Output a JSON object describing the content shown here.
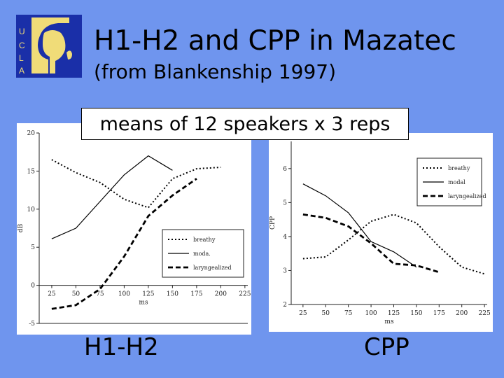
{
  "slide": {
    "title": "H1-H2 and CPP in Mazatec",
    "subtitle": "(from Blankenship 1997)",
    "note": "means of 12 speakers x 3 reps",
    "logo_letters": [
      "U",
      "C",
      "L",
      "A"
    ],
    "captions": {
      "left": "H1-H2",
      "right": "CPP"
    },
    "colors": {
      "background": "#6f95ee",
      "logo_blue": "#1a2fa8",
      "logo_gold": "#f0dc78"
    }
  },
  "chart_data": [
    {
      "type": "line",
      "xlabel": "ms",
      "ylabel": "dB",
      "x_ticks": [
        "25",
        "50",
        "75",
        "100",
        "125",
        "150",
        "175",
        "200",
        "225"
      ],
      "y_ticks": [
        "-5",
        "0",
        "5",
        "10",
        "15",
        "20"
      ],
      "xlim": [
        12,
        228
      ],
      "ylim": [
        -5,
        20
      ],
      "legend_position": "bottom-right",
      "series": [
        {
          "name": "breathy",
          "dash": "dotted",
          "x": [
            25,
            50,
            75,
            100,
            125,
            150,
            175,
            200
          ],
          "y": [
            16.5,
            14.8,
            13.5,
            11.3,
            10.2,
            14,
            15.3,
            15.5
          ]
        },
        {
          "name": "moda.",
          "dash": "solid",
          "x": [
            25,
            50,
            75,
            100,
            125,
            150
          ],
          "y": [
            6.1,
            7.5,
            11,
            14.5,
            17,
            15.1
          ]
        },
        {
          "name": "laryngealized",
          "dash": "dashed",
          "x": [
            25,
            50,
            75,
            100,
            125,
            150,
            175
          ],
          "y": [
            -3.1,
            -2.6,
            -0.5,
            3.8,
            9.1,
            11.8,
            14
          ]
        }
      ]
    },
    {
      "type": "line",
      "xlabel": "ms",
      "ylabel": "CPP",
      "x_ticks": [
        "25",
        "50",
        "75",
        "100",
        "125",
        "150",
        "175",
        "200",
        "225"
      ],
      "y_ticks": [
        "2",
        "3",
        "4",
        "5",
        "6"
      ],
      "xlim": [
        12,
        228
      ],
      "ylim": [
        2,
        6.8
      ],
      "legend_position": "top-right",
      "series": [
        {
          "name": "breathy",
          "dash": "dotted",
          "x": [
            25,
            50,
            75,
            100,
            125,
            150,
            175,
            200,
            225
          ],
          "y": [
            3.35,
            3.4,
            3.9,
            4.45,
            4.65,
            4.4,
            3.7,
            3.1,
            2.9
          ]
        },
        {
          "name": "modal",
          "dash": "solid",
          "x": [
            25,
            50,
            75,
            100,
            125,
            150
          ],
          "y": [
            5.55,
            5.2,
            4.7,
            3.85,
            3.55,
            3.1
          ]
        },
        {
          "name": "laryngealized",
          "dash": "dashed",
          "x": [
            25,
            50,
            75,
            100,
            125,
            150,
            175
          ],
          "y": [
            4.65,
            4.55,
            4.3,
            3.8,
            3.2,
            3.15,
            2.95
          ]
        }
      ]
    }
  ]
}
